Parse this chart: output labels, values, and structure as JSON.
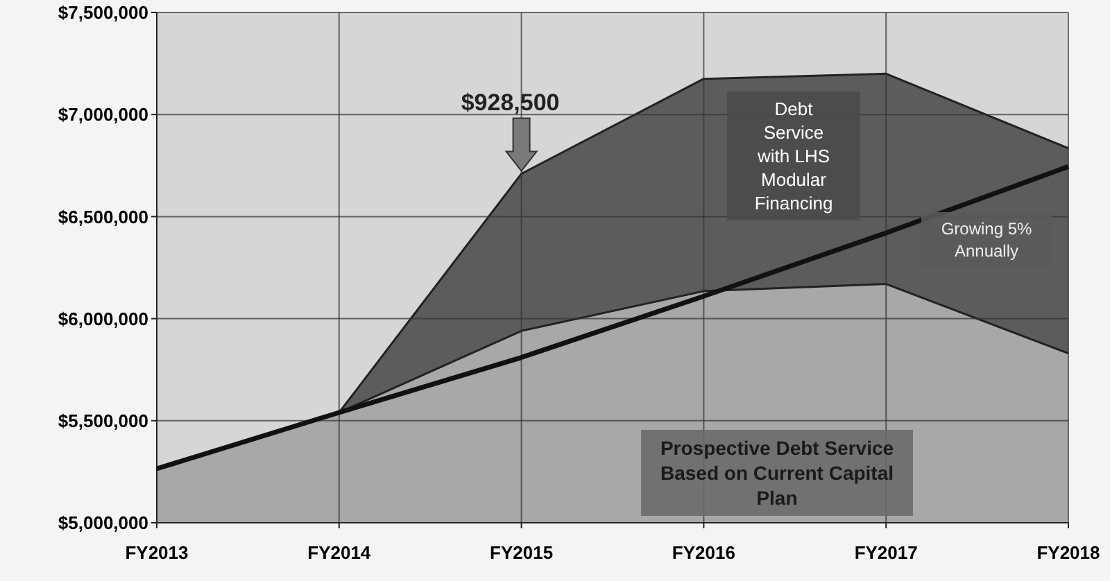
{
  "chart_data": {
    "type": "area",
    "categories": [
      "FY2013",
      "FY2014",
      "FY2015",
      "FY2016",
      "FY2017",
      "FY2018"
    ],
    "series": [
      {
        "name": "Debt Service with LHS Modular Financing",
        "color": "#5c5c5c",
        "values": [
          null,
          5540000,
          6710000,
          7175000,
          7200000,
          6835000
        ]
      },
      {
        "name": "Prospective Debt Service Based on Current Capital Plan",
        "color": "#a8a8a8",
        "values": [
          5265000,
          5540000,
          5940000,
          6135000,
          6170000,
          5830000
        ]
      },
      {
        "name": "Growing 5% Annually",
        "type": "line",
        "color": "#111111",
        "values": [
          5265000,
          5540000,
          5810000,
          6110000,
          6420000,
          6745000
        ]
      }
    ],
    "ylim": [
      5000000,
      7500000
    ],
    "yticks": [
      {
        "value": 5000000,
        "label": "$5,000,000"
      },
      {
        "value": 5500000,
        "label": "$5,500,000"
      },
      {
        "value": 6000000,
        "label": "$6,000,000"
      },
      {
        "value": 6500000,
        "label": "$6,500,000"
      },
      {
        "value": 7000000,
        "label": "$7,000,000"
      },
      {
        "value": 7500000,
        "label": "$7,500,000"
      }
    ],
    "grid": true,
    "legend": false,
    "annotations": [
      {
        "text": "$928,500",
        "x": "FY2015",
        "y": 6710000
      }
    ]
  }
}
